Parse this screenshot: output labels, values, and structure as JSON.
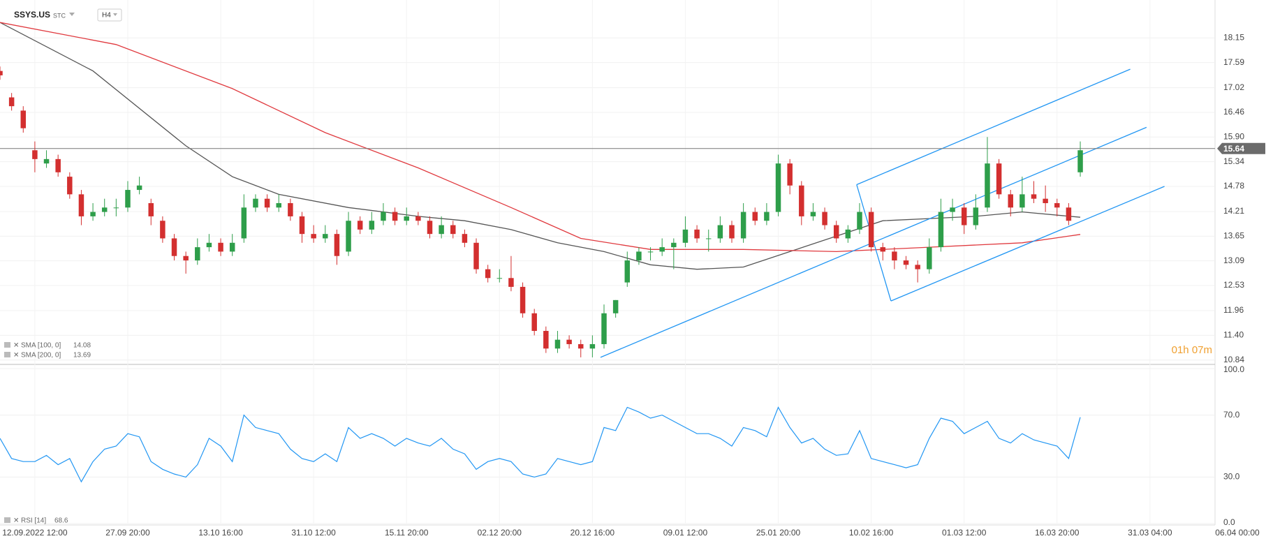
{
  "chart_data": {
    "type": "candlestick",
    "symbol": "SSYS.US",
    "exchange": "STC",
    "interval": "H4",
    "countdown": "01h 07m",
    "up_color": "#2e9e4a",
    "down_color": "#d32f2f",
    "current_price": 15.64,
    "x": [
      0,
      1,
      2,
      3,
      4,
      5,
      6,
      7,
      8,
      9,
      10,
      11,
      12,
      13,
      14,
      15,
      16,
      17,
      18,
      19,
      20,
      21,
      22,
      23,
      24,
      25,
      26,
      27,
      28,
      29,
      30,
      31,
      32,
      33,
      34,
      35,
      36,
      37,
      38,
      39,
      40,
      41,
      42,
      43,
      44,
      45,
      46,
      47,
      48,
      49,
      50,
      51,
      52,
      53,
      54,
      55,
      56,
      57,
      58,
      59,
      60,
      61,
      62,
      63,
      64,
      65,
      66,
      67,
      68,
      69,
      70,
      71,
      72,
      73,
      74,
      75,
      76,
      77,
      78,
      79,
      80,
      81,
      82,
      83,
      84,
      85,
      86,
      87,
      88,
      89,
      90,
      91,
      92,
      93
    ],
    "ohlc": [
      [
        17.4,
        17.5,
        17.2,
        17.3
      ],
      [
        16.8,
        16.9,
        16.5,
        16.6
      ],
      [
        16.5,
        16.6,
        16.0,
        16.1
      ],
      [
        15.6,
        15.8,
        15.1,
        15.4
      ],
      [
        15.3,
        15.6,
        15.2,
        15.4
      ],
      [
        15.4,
        15.5,
        15.0,
        15.1
      ],
      [
        15.0,
        15.1,
        14.5,
        14.6
      ],
      [
        14.6,
        14.7,
        13.9,
        14.1
      ],
      [
        14.1,
        14.4,
        14.0,
        14.2
      ],
      [
        14.2,
        14.5,
        14.1,
        14.3
      ],
      [
        14.3,
        14.5,
        14.1,
        14.3
      ],
      [
        14.3,
        14.9,
        14.2,
        14.7
      ],
      [
        14.7,
        15.0,
        14.6,
        14.8
      ],
      [
        14.4,
        14.5,
        13.9,
        14.1
      ],
      [
        14.0,
        14.1,
        13.5,
        13.6
      ],
      [
        13.6,
        13.7,
        13.1,
        13.2
      ],
      [
        13.2,
        13.3,
        12.8,
        13.1
      ],
      [
        13.1,
        13.6,
        13.0,
        13.4
      ],
      [
        13.4,
        13.7,
        13.3,
        13.5
      ],
      [
        13.5,
        13.6,
        13.2,
        13.3
      ],
      [
        13.3,
        13.7,
        13.2,
        13.5
      ],
      [
        13.6,
        14.6,
        13.5,
        14.3
      ],
      [
        14.3,
        14.6,
        14.2,
        14.5
      ],
      [
        14.5,
        14.6,
        14.2,
        14.3
      ],
      [
        14.3,
        14.6,
        14.2,
        14.4
      ],
      [
        14.4,
        14.5,
        14.0,
        14.1
      ],
      [
        14.1,
        14.2,
        13.5,
        13.7
      ],
      [
        13.7,
        13.9,
        13.5,
        13.6
      ],
      [
        13.6,
        13.9,
        13.5,
        13.7
      ],
      [
        13.7,
        13.8,
        13.0,
        13.2
      ],
      [
        13.3,
        14.2,
        13.2,
        14.0
      ],
      [
        14.0,
        14.1,
        13.7,
        13.8
      ],
      [
        13.8,
        14.2,
        13.7,
        14.0
      ],
      [
        14.0,
        14.4,
        13.9,
        14.2
      ],
      [
        14.2,
        14.3,
        13.9,
        14.0
      ],
      [
        14.0,
        14.3,
        13.9,
        14.1
      ],
      [
        14.1,
        14.2,
        13.9,
        14.0
      ],
      [
        14.0,
        14.1,
        13.6,
        13.7
      ],
      [
        13.7,
        14.1,
        13.6,
        13.9
      ],
      [
        13.9,
        14.0,
        13.6,
        13.7
      ],
      [
        13.7,
        13.8,
        13.4,
        13.5
      ],
      [
        13.5,
        13.6,
        12.8,
        12.9
      ],
      [
        12.9,
        13.0,
        12.6,
        12.7
      ],
      [
        12.7,
        12.9,
        12.6,
        12.7
      ],
      [
        12.7,
        13.2,
        12.4,
        12.5
      ],
      [
        12.5,
        12.6,
        11.8,
        11.9
      ],
      [
        11.9,
        12.0,
        11.4,
        11.5
      ],
      [
        11.5,
        11.6,
        11.0,
        11.1
      ],
      [
        11.1,
        11.5,
        11.0,
        11.3
      ],
      [
        11.3,
        11.4,
        11.1,
        11.2
      ],
      [
        11.2,
        11.3,
        10.9,
        11.1
      ],
      [
        11.1,
        11.4,
        10.9,
        11.2
      ],
      [
        11.2,
        12.1,
        11.1,
        11.9
      ],
      [
        11.9,
        12.2,
        11.8,
        12.2
      ],
      [
        12.6,
        13.3,
        12.5,
        13.1
      ],
      [
        13.1,
        13.4,
        13.0,
        13.3
      ],
      [
        13.3,
        13.4,
        13.1,
        13.3
      ],
      [
        13.3,
        13.6,
        13.2,
        13.4
      ],
      [
        13.4,
        13.6,
        12.9,
        13.5
      ],
      [
        13.5,
        14.1,
        13.4,
        13.8
      ],
      [
        13.8,
        13.9,
        13.5,
        13.6
      ],
      [
        13.6,
        13.8,
        13.3,
        13.6
      ],
      [
        13.6,
        14.1,
        13.5,
        13.9
      ],
      [
        13.9,
        14.0,
        13.5,
        13.6
      ],
      [
        13.6,
        14.4,
        13.5,
        14.2
      ],
      [
        14.2,
        14.3,
        13.9,
        14.0
      ],
      [
        14.0,
        14.4,
        13.9,
        14.2
      ],
      [
        14.2,
        15.5,
        14.1,
        15.3
      ],
      [
        15.3,
        15.4,
        14.6,
        14.8
      ],
      [
        14.8,
        14.9,
        13.9,
        14.1
      ],
      [
        14.1,
        14.4,
        14.0,
        14.2
      ],
      [
        14.2,
        14.3,
        13.8,
        13.9
      ],
      [
        13.9,
        14.0,
        13.5,
        13.6
      ],
      [
        13.6,
        13.9,
        13.5,
        13.8
      ],
      [
        13.8,
        14.4,
        13.7,
        14.2
      ],
      [
        14.2,
        14.3,
        13.3,
        13.4
      ],
      [
        13.4,
        13.5,
        13.1,
        13.3
      ],
      [
        13.3,
        13.4,
        12.9,
        13.1
      ],
      [
        13.1,
        13.2,
        12.9,
        13.0
      ],
      [
        13.0,
        13.1,
        12.6,
        12.9
      ],
      [
        12.9,
        13.6,
        12.8,
        13.4
      ],
      [
        13.4,
        14.5,
        13.3,
        14.2
      ],
      [
        14.2,
        14.5,
        14.0,
        14.3
      ],
      [
        14.3,
        14.4,
        13.7,
        13.9
      ],
      [
        13.9,
        14.6,
        13.8,
        14.3
      ],
      [
        14.3,
        15.9,
        14.2,
        15.3
      ],
      [
        15.3,
        15.4,
        14.5,
        14.6
      ],
      [
        14.6,
        14.7,
        14.1,
        14.3
      ],
      [
        14.3,
        15.0,
        14.2,
        14.6
      ],
      [
        14.6,
        14.9,
        14.4,
        14.5
      ],
      [
        14.5,
        14.8,
        14.2,
        14.4
      ],
      [
        14.4,
        14.5,
        14.1,
        14.3
      ],
      [
        14.3,
        14.4,
        13.9,
        14.0
      ],
      [
        15.1,
        15.8,
        15.0,
        15.6
      ]
    ],
    "xlim": [
      0,
      104.6
    ],
    "xticks": [
      {
        "value": 3,
        "label": "12.09.2022  12:00"
      },
      {
        "value": 11,
        "label": "27.09  20:00"
      },
      {
        "value": 19,
        "label": "13.10  16:00"
      },
      {
        "value": 27,
        "label": "31.10  12:00"
      },
      {
        "value": 35,
        "label": "15.11  20:00"
      },
      {
        "value": 43,
        "label": "02.12  20:00"
      },
      {
        "value": 51,
        "label": "20.12  16:00"
      },
      {
        "value": 59,
        "label": "09.01  12:00"
      },
      {
        "value": 67,
        "label": "25.01  20:00"
      },
      {
        "value": 75,
        "label": "10.02  16:00"
      },
      {
        "value": 83,
        "label": "01.03  12:00"
      },
      {
        "value": 91,
        "label": "16.03  20:00"
      },
      {
        "value": 99,
        "label": "31.03  04:00"
      },
      {
        "value": 107,
        "label": "06.04  00:00"
      }
    ],
    "ylim": [
      10.74,
      19.01
    ],
    "yticks": [
      18.15,
      17.59,
      17.02,
      16.46,
      {
        "value": 15.9,
        "label": "15.90"
      },
      15.34,
      14.78,
      14.21,
      13.65,
      13.09,
      12.53,
      11.96,
      {
        "value": 11.4,
        "label": "11.40"
      },
      10.84
    ],
    "overlays": [
      {
        "name": "SMA [100,  0]",
        "last": 14.08,
        "color": "#555555",
        "x": [
          0,
          8,
          16,
          20,
          24,
          30,
          36,
          40,
          44,
          48,
          52,
          56,
          60,
          64,
          68,
          72,
          76,
          80,
          84,
          88,
          93
        ],
        "values": [
          18.5,
          17.4,
          15.7,
          15.0,
          14.6,
          14.3,
          14.1,
          14.0,
          13.8,
          13.5,
          13.3,
          13.0,
          12.9,
          12.95,
          13.3,
          13.65,
          14.0,
          14.05,
          14.1,
          14.2,
          14.08
        ]
      },
      {
        "name": "SMA [200,  0]",
        "last": 13.69,
        "color": "#e0393e",
        "x": [
          0,
          10,
          20,
          28,
          36,
          44,
          50,
          56,
          64,
          72,
          80,
          88,
          93
        ],
        "values": [
          18.5,
          18.0,
          17.0,
          16.0,
          15.2,
          14.3,
          13.6,
          13.35,
          13.35,
          13.3,
          13.4,
          13.5,
          13.69
        ]
      }
    ],
    "trend_color": "#2196f3",
    "trendlines": [
      {
        "x": [
          51.7,
          98.7
        ],
        "values": [
          10.9,
          16.12
        ]
      },
      {
        "x": [
          73.75,
          97.3
        ],
        "values": [
          14.82,
          17.44
        ]
      },
      {
        "x": [
          76.7,
          100.25
        ],
        "values": [
          12.18,
          14.78
        ]
      },
      {
        "x": [
          73.75,
          76.7
        ],
        "values": [
          14.82,
          12.18
        ]
      }
    ],
    "rsi": {
      "name": "RSI [14]",
      "last": 68.6,
      "color": "#2196f3",
      "ylim": [
        0,
        100
      ],
      "yticks": [
        {
          "value": 100,
          "label": "100.0"
        },
        {
          "value": 70,
          "label": "70.0"
        },
        {
          "value": 30,
          "label": "30.0"
        },
        {
          "value": 0,
          "label": "0.0"
        }
      ],
      "values": [
        55,
        42,
        40,
        40,
        44,
        38,
        42,
        27,
        40,
        48,
        50,
        58,
        56,
        40,
        35,
        32,
        30,
        38,
        55,
        50,
        40,
        70,
        62,
        60,
        58,
        48,
        42,
        40,
        45,
        40,
        62,
        55,
        58,
        55,
        50,
        55,
        52,
        50,
        55,
        48,
        45,
        35,
        40,
        42,
        40,
        32,
        30,
        32,
        42,
        40,
        38,
        40,
        62,
        60,
        75,
        72,
        68,
        70,
        66,
        62,
        58,
        58,
        55,
        50,
        62,
        60,
        56,
        75,
        62,
        52,
        55,
        48,
        44,
        45,
        60,
        42,
        40,
        38,
        36,
        38,
        55,
        68,
        66,
        58,
        62,
        66,
        55,
        52,
        58,
        54,
        52,
        50,
        42,
        68.6
      ]
    }
  }
}
